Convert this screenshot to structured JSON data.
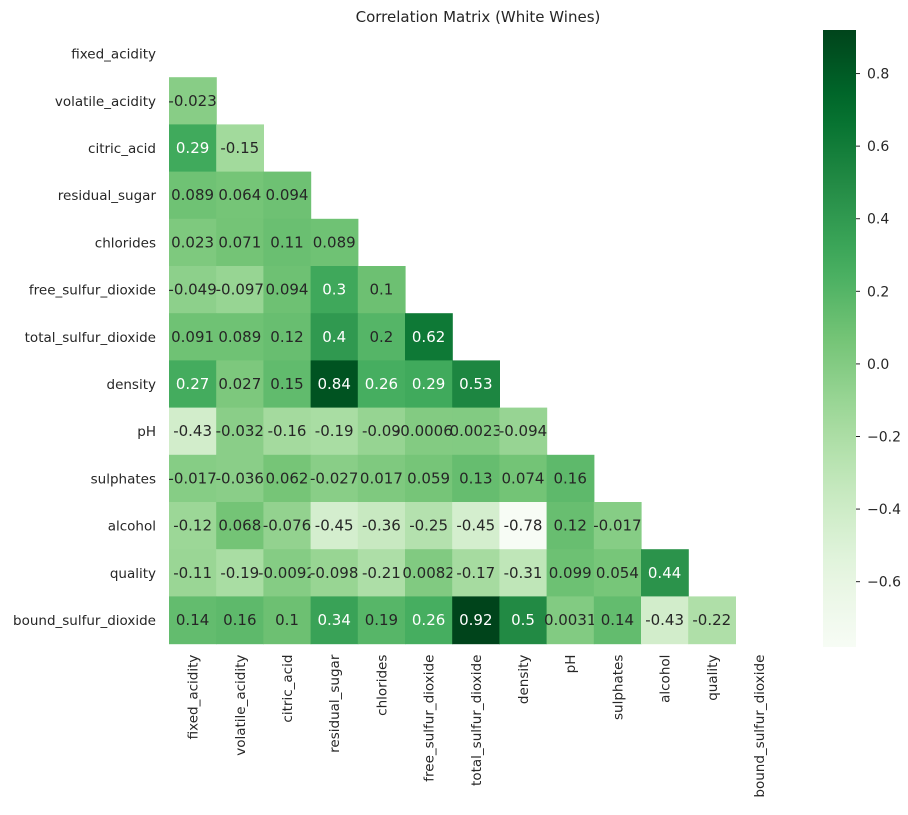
{
  "chart_data": {
    "type": "heatmap",
    "title": "Correlation Matrix (White Wines)",
    "colormap": "Greens",
    "labels": [
      "fixed_acidity",
      "volatile_acidity",
      "citric_acid",
      "residual_sugar",
      "chlorides",
      "free_sulfur_dioxide",
      "total_sulfur_dioxide",
      "density",
      "pH",
      "sulphates",
      "alcohol",
      "quality",
      "bound_sulfur_dioxide"
    ],
    "mask": "upper-triangle",
    "vmin": -0.78,
    "vmax": 0.92,
    "colorbar_ticks": [
      "0.8",
      "0.6",
      "0.4",
      "0.2",
      "0.0",
      "−0.2",
      "−0.4",
      "−0.6"
    ],
    "colorbar_tick_values": [
      0.8,
      0.6,
      0.4,
      0.2,
      0.0,
      -0.2,
      -0.4,
      -0.6
    ],
    "rows": [
      {
        "index": 1,
        "values": [
          -0.023
        ],
        "labels": [
          "-0.023"
        ]
      },
      {
        "index": 2,
        "values": [
          0.29,
          -0.15
        ],
        "labels": [
          "0.29",
          "-0.15"
        ]
      },
      {
        "index": 3,
        "values": [
          0.089,
          0.064,
          0.094
        ],
        "labels": [
          "0.089",
          "0.064",
          "0.094"
        ]
      },
      {
        "index": 4,
        "values": [
          0.023,
          0.071,
          0.11,
          0.089
        ],
        "labels": [
          "0.023",
          "0.071",
          "0.11",
          "0.089"
        ]
      },
      {
        "index": 5,
        "values": [
          -0.049,
          -0.097,
          0.094,
          0.3,
          0.1
        ],
        "labels": [
          "-0.049",
          "-0.097",
          "0.094",
          "0.3",
          "0.1"
        ]
      },
      {
        "index": 6,
        "values": [
          0.091,
          0.089,
          0.12,
          0.4,
          0.2,
          0.62
        ],
        "labels": [
          "0.091",
          "0.089",
          "0.12",
          "0.4",
          "0.2",
          "0.62"
        ]
      },
      {
        "index": 7,
        "values": [
          0.27,
          0.027,
          0.15,
          0.84,
          0.26,
          0.29,
          0.53
        ],
        "labels": [
          "0.27",
          "0.027",
          "0.15",
          "0.84",
          "0.26",
          "0.29",
          "0.53"
        ]
      },
      {
        "index": 8,
        "values": [
          -0.43,
          -0.032,
          -0.16,
          -0.19,
          -0.09,
          -0.00062,
          0.0023,
          -0.094
        ],
        "labels": [
          "-0.43",
          "-0.032",
          "-0.16",
          "-0.19",
          "-0.09",
          "-0.00062",
          "0.0023",
          "-0.094"
        ]
      },
      {
        "index": 9,
        "values": [
          -0.017,
          -0.036,
          0.062,
          -0.027,
          0.017,
          0.059,
          0.13,
          0.074,
          0.16
        ],
        "labels": [
          "-0.017",
          "-0.036",
          "0.062",
          "-0.027",
          "0.017",
          "0.059",
          "0.13",
          "0.074",
          "0.16"
        ]
      },
      {
        "index": 10,
        "values": [
          -0.12,
          0.068,
          -0.076,
          -0.45,
          -0.36,
          -0.25,
          -0.45,
          -0.78,
          0.12,
          -0.017
        ],
        "labels": [
          "-0.12",
          "0.068",
          "-0.076",
          "-0.45",
          "-0.36",
          "-0.25",
          "-0.45",
          "-0.78",
          "0.12",
          "-0.017"
        ]
      },
      {
        "index": 11,
        "values": [
          -0.11,
          -0.19,
          -0.0092,
          -0.098,
          -0.21,
          0.0082,
          -0.17,
          -0.31,
          0.099,
          0.054,
          0.44
        ],
        "labels": [
          "-0.11",
          "-0.19",
          "-0.0092",
          "-0.098",
          "-0.21",
          "0.0082",
          "-0.17",
          "-0.31",
          "0.099",
          "0.054",
          "0.44"
        ]
      },
      {
        "index": 12,
        "values": [
          0.14,
          0.16,
          0.1,
          0.34,
          0.19,
          0.26,
          0.92,
          0.5,
          0.0031,
          0.14,
          -0.43,
          -0.22
        ],
        "labels": [
          "0.14",
          "0.16",
          "0.1",
          "0.34",
          "0.19",
          "0.26",
          "0.92",
          "0.5",
          "0.0031",
          "0.14",
          "-0.43",
          "-0.22"
        ]
      }
    ]
  }
}
